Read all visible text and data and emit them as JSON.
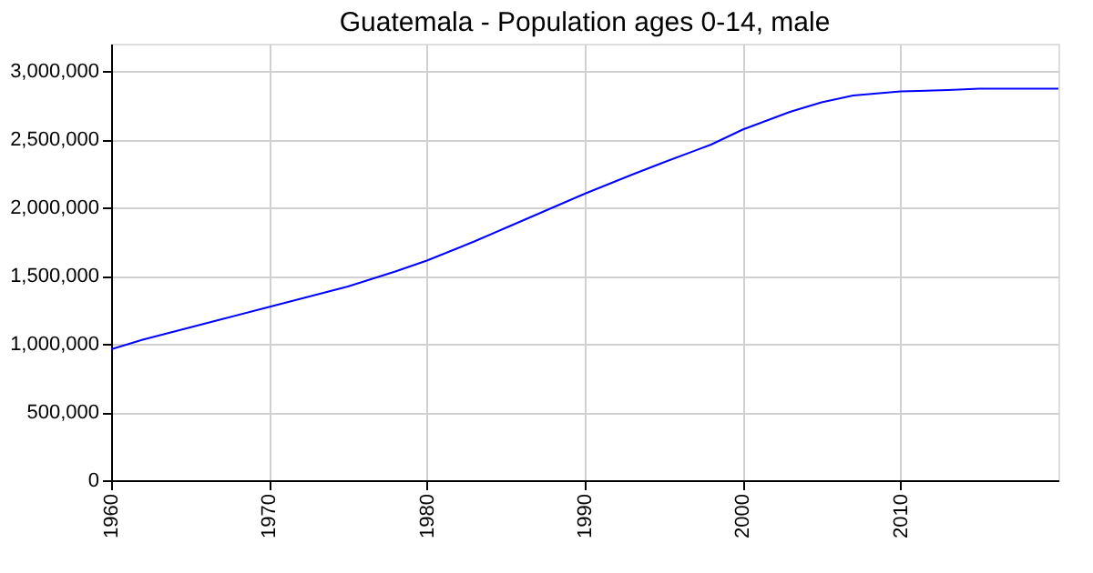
{
  "chart_data": {
    "type": "line",
    "title": "Guatemala - Population ages 0-14, male",
    "x": [
      1960,
      1962,
      1965,
      1967,
      1970,
      1973,
      1975,
      1978,
      1980,
      1983,
      1985,
      1988,
      1990,
      1993,
      1995,
      1998,
      2000,
      2003,
      2005,
      2007,
      2010,
      2013,
      2015,
      2020
    ],
    "series": [
      {
        "color": "#0000ff",
        "values": [
          960000,
          1030000,
          1120000,
          1180000,
          1270000,
          1360000,
          1420000,
          1530000,
          1610000,
          1750000,
          1850000,
          2000000,
          2100000,
          2240000,
          2330000,
          2460000,
          2570000,
          2700000,
          2770000,
          2820000,
          2850000,
          2860000,
          2870000,
          2870000
        ]
      }
    ],
    "xlim": [
      1960,
      2020
    ],
    "xticks": [
      1960,
      1970,
      1980,
      1990,
      2000,
      2010
    ],
    "ylim": [
      0,
      3200000
    ],
    "yticks": [
      0,
      {
        "value": 500000,
        "label": "500,000"
      },
      {
        "value": 1000000,
        "label": "1,000,000"
      },
      {
        "value": 1500000,
        "label": "1,500,000"
      },
      {
        "value": 2000000,
        "label": "2,000,000"
      },
      {
        "value": 2500000,
        "label": "2,500,000"
      },
      {
        "value": 3000000,
        "label": "3,000,000"
      }
    ],
    "grid": true,
    "marker": "none",
    "line_style": "solid"
  }
}
